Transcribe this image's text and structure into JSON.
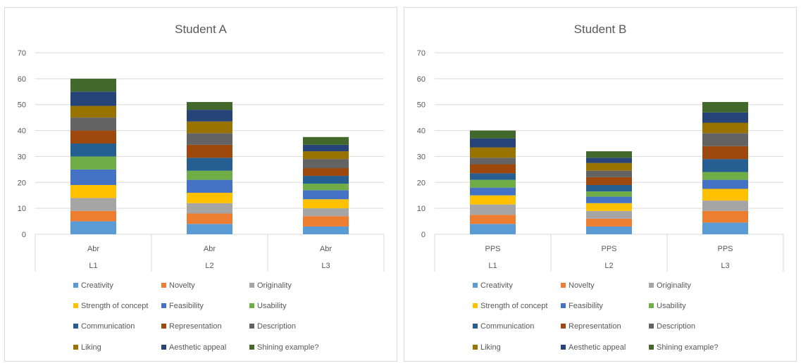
{
  "chart_data": [
    {
      "type": "bar",
      "stacked": true,
      "title": "Student A",
      "xlabel": "",
      "ylabel": "",
      "ylim": [
        0,
        70
      ],
      "yticks": [
        0,
        10,
        20,
        30,
        40,
        50,
        60,
        70
      ],
      "grid": true,
      "legend_placement": "bottom",
      "categories": [
        {
          "label": "Abr",
          "group": "L1"
        },
        {
          "label": "Abr",
          "group": "L2"
        },
        {
          "label": "Abr",
          "group": "L3"
        }
      ],
      "series": [
        {
          "name": "Creativity",
          "color": "#5b9bd5",
          "values": [
            5,
            4,
            3
          ]
        },
        {
          "name": "Novelty",
          "color": "#ed7d31",
          "values": [
            4,
            4,
            4
          ]
        },
        {
          "name": "Originality",
          "color": "#a5a5a5",
          "values": [
            5,
            4,
            3
          ]
        },
        {
          "name": "Strength of concept",
          "color": "#ffc000",
          "values": [
            5,
            4,
            3.5
          ]
        },
        {
          "name": "Feasibility",
          "color": "#4472c4",
          "values": [
            6,
            5,
            3.5
          ]
        },
        {
          "name": "Usability",
          "color": "#70ad47",
          "values": [
            5,
            3.5,
            2.5
          ]
        },
        {
          "name": "Communication",
          "color": "#255e91",
          "values": [
            5,
            5,
            3
          ]
        },
        {
          "name": "Representation",
          "color": "#9e480e",
          "values": [
            5,
            5,
            3
          ]
        },
        {
          "name": "Description",
          "color": "#636363",
          "values": [
            5,
            4.5,
            3.5
          ]
        },
        {
          "name": "Liking",
          "color": "#997300",
          "values": [
            4.5,
            4.5,
            3
          ]
        },
        {
          "name": "Aesthetic appeal",
          "color": "#264478",
          "values": [
            5.5,
            4.5,
            2.5
          ]
        },
        {
          "name": "Shining example?",
          "color": "#43682b",
          "values": [
            5,
            3,
            3
          ]
        }
      ]
    },
    {
      "type": "bar",
      "stacked": true,
      "title": "Student B",
      "xlabel": "",
      "ylabel": "",
      "ylim": [
        0,
        70
      ],
      "yticks": [
        0,
        10,
        20,
        30,
        40,
        50,
        60,
        70
      ],
      "grid": true,
      "legend_placement": "bottom",
      "categories": [
        {
          "label": "PPS",
          "group": "L1"
        },
        {
          "label": "PPS",
          "group": "L2"
        },
        {
          "label": "PPS",
          "group": "L3"
        }
      ],
      "series": [
        {
          "name": "Creativity",
          "color": "#5b9bd5",
          "values": [
            4,
            3,
            4.5
          ]
        },
        {
          "name": "Novelty",
          "color": "#ed7d31",
          "values": [
            3.5,
            3,
            4.5
          ]
        },
        {
          "name": "Originality",
          "color": "#a5a5a5",
          "values": [
            4,
            3,
            4
          ]
        },
        {
          "name": "Strength of concept",
          "color": "#ffc000",
          "values": [
            3.5,
            3,
            4.5
          ]
        },
        {
          "name": "Feasibility",
          "color": "#4472c4",
          "values": [
            3,
            2.5,
            3.5
          ]
        },
        {
          "name": "Usability",
          "color": "#70ad47",
          "values": [
            3,
            2,
            3
          ]
        },
        {
          "name": "Communication",
          "color": "#255e91",
          "values": [
            2.5,
            2.5,
            5
          ]
        },
        {
          "name": "Representation",
          "color": "#9e480e",
          "values": [
            3.5,
            3,
            5
          ]
        },
        {
          "name": "Description",
          "color": "#636363",
          "values": [
            2.5,
            2.5,
            5
          ]
        },
        {
          "name": "Liking",
          "color": "#997300",
          "values": [
            4,
            3,
            4
          ]
        },
        {
          "name": "Aesthetic appeal",
          "color": "#264478",
          "values": [
            3.5,
            2,
            4
          ]
        },
        {
          "name": "Shining example?",
          "color": "#43682b",
          "values": [
            3,
            2.5,
            4
          ]
        }
      ]
    }
  ]
}
